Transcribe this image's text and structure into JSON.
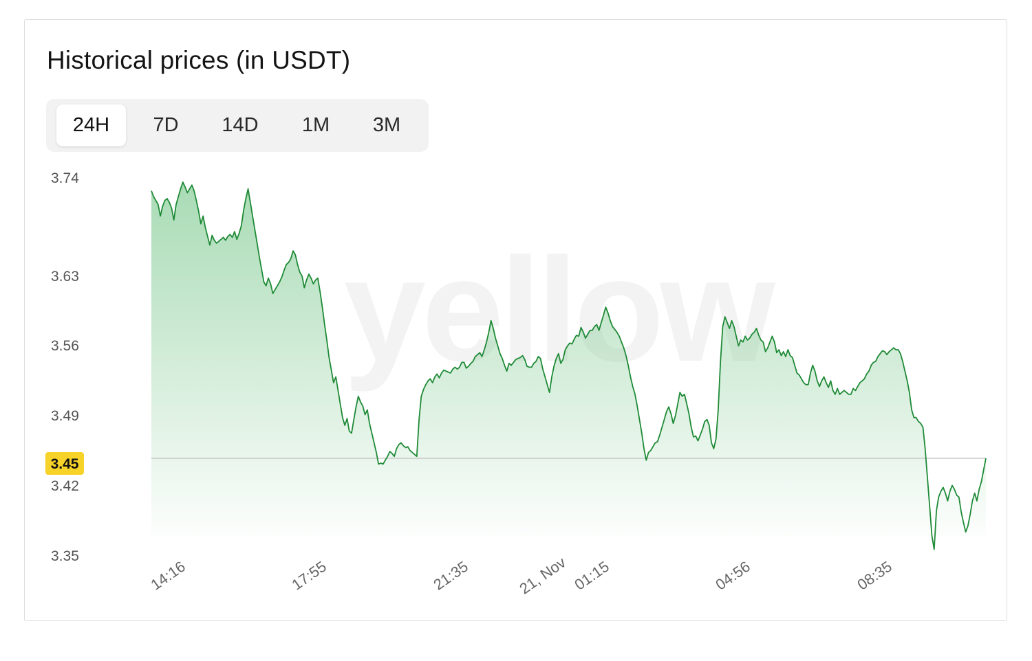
{
  "header": {
    "title": "Historical prices (in USDT)"
  },
  "tabs": [
    {
      "label": "24H",
      "active": true
    },
    {
      "label": "7D",
      "active": false
    },
    {
      "label": "14D",
      "active": false
    },
    {
      "label": "1M",
      "active": false
    },
    {
      "label": "3M",
      "active": false
    }
  ],
  "watermark": "yellow",
  "colors": {
    "line": "#1e8a36",
    "fill_top": "#8ccf9c",
    "badge": "#f7d32a",
    "reference_line": "#c8c8c8"
  },
  "chart_data": {
    "type": "area",
    "title": "Historical prices (in USDT)",
    "ylim": [
      3.35,
      3.74
    ],
    "yticks": [
      "3.74",
      "3.63",
      "3.56",
      "3.49",
      "3.42",
      "3.35"
    ],
    "xticks": [
      "14:16",
      "17:55",
      "21:35",
      "21, Nov",
      "01:15",
      "04:56",
      "08:35"
    ],
    "current_price": "3.45",
    "current_value": 3.45,
    "grid": false,
    "series": [
      {
        "values": [
          3.726,
          3.72,
          3.716,
          3.712,
          3.7,
          3.71,
          3.716,
          3.718,
          3.714,
          3.708,
          3.696,
          3.712,
          3.72,
          3.728,
          3.735,
          3.73,
          3.724,
          3.728,
          3.732,
          3.726,
          3.716,
          3.705,
          3.692,
          3.7,
          3.688,
          3.679,
          3.67,
          3.68,
          3.675,
          3.672,
          3.674,
          3.676,
          3.678,
          3.675,
          3.679,
          3.681,
          3.678,
          3.684,
          3.676,
          3.682,
          3.69,
          3.706,
          3.718,
          3.728,
          3.714,
          3.7,
          3.686,
          3.672,
          3.658,
          3.645,
          3.632,
          3.628,
          3.636,
          3.63,
          3.62,
          3.624,
          3.628,
          3.632,
          3.637,
          3.644,
          3.65,
          3.652,
          3.656,
          3.664,
          3.66,
          3.65,
          3.642,
          3.638,
          3.626,
          3.634,
          3.64,
          3.636,
          3.63,
          3.634,
          3.636,
          3.622,
          3.606,
          3.588,
          3.572,
          3.554,
          3.541,
          3.528,
          3.534,
          3.52,
          3.506,
          3.492,
          3.484,
          3.491,
          3.478,
          3.476,
          3.49,
          3.503,
          3.514,
          3.508,
          3.504,
          3.495,
          3.5,
          3.486,
          3.476,
          3.466,
          3.456,
          3.444,
          3.445,
          3.444,
          3.448,
          3.452,
          3.457,
          3.455,
          3.452,
          3.46,
          3.464,
          3.466,
          3.463,
          3.461,
          3.462,
          3.458,
          3.456,
          3.454,
          3.452,
          3.49,
          3.514,
          3.521,
          3.526,
          3.53,
          3.532,
          3.528,
          3.534,
          3.537,
          3.533,
          3.538,
          3.541,
          3.54,
          3.539,
          3.538,
          3.542,
          3.544,
          3.542,
          3.544,
          3.549,
          3.549,
          3.543,
          3.545,
          3.548,
          3.55,
          3.555,
          3.557,
          3.559,
          3.555,
          3.562,
          3.57,
          3.58,
          3.592,
          3.584,
          3.574,
          3.566,
          3.558,
          3.553,
          3.546,
          3.54,
          3.548,
          3.546,
          3.549,
          3.552,
          3.553,
          3.554,
          3.556,
          3.552,
          3.545,
          3.544,
          3.544,
          3.548,
          3.55,
          3.555,
          3.553,
          3.542,
          3.534,
          3.526,
          3.518,
          3.534,
          3.545,
          3.553,
          3.558,
          3.548,
          3.552,
          3.562,
          3.566,
          3.569,
          3.568,
          3.573,
          3.577,
          3.576,
          3.585,
          3.58,
          3.574,
          3.578,
          3.582,
          3.582,
          3.586,
          3.588,
          3.582,
          3.59,
          3.598,
          3.606,
          3.6,
          3.592,
          3.586,
          3.583,
          3.58,
          3.576,
          3.57,
          3.564,
          3.556,
          3.546,
          3.534,
          3.524,
          3.516,
          3.504,
          3.49,
          3.476,
          3.46,
          3.448,
          3.456,
          3.458,
          3.462,
          3.466,
          3.467,
          3.474,
          3.482,
          3.49,
          3.498,
          3.503,
          3.496,
          3.486,
          3.494,
          3.506,
          3.518,
          3.514,
          3.516,
          3.506,
          3.496,
          3.482,
          3.472,
          3.473,
          3.468,
          3.474,
          3.48,
          3.488,
          3.49,
          3.484,
          3.466,
          3.46,
          3.47,
          3.5,
          3.55,
          3.586,
          3.596,
          3.59,
          3.584,
          3.592,
          3.586,
          3.576,
          3.566,
          3.572,
          3.57,
          3.576,
          3.572,
          3.574,
          3.578,
          3.58,
          3.584,
          3.577,
          3.572,
          3.57,
          3.56,
          3.564,
          3.57,
          3.576,
          3.57,
          3.559,
          3.562,
          3.556,
          3.56,
          3.555,
          3.562,
          3.556,
          3.554,
          3.546,
          3.538,
          3.536,
          3.532,
          3.528,
          3.526,
          3.526,
          3.538,
          3.546,
          3.54,
          3.53,
          3.524,
          3.53,
          3.534,
          3.528,
          3.523,
          3.53,
          3.52,
          3.516,
          3.522,
          3.516,
          3.518,
          3.52,
          3.518,
          3.516,
          3.516,
          3.522,
          3.52,
          3.524,
          3.528,
          3.53,
          3.532,
          3.537,
          3.54,
          3.546,
          3.549,
          3.55,
          3.555,
          3.558,
          3.561,
          3.56,
          3.557,
          3.56,
          3.562,
          3.564,
          3.562,
          3.562,
          3.558,
          3.55,
          3.54,
          3.53,
          3.518,
          3.5,
          3.492,
          3.492,
          3.488,
          3.486,
          3.482,
          3.46,
          3.43,
          3.4,
          3.37,
          3.356,
          3.396,
          3.41,
          3.416,
          3.42,
          3.414,
          3.406,
          3.416,
          3.422,
          3.418,
          3.412,
          3.41,
          3.395,
          3.384,
          3.374,
          3.38,
          3.392,
          3.406,
          3.414,
          3.406,
          3.418,
          3.426,
          3.438,
          3.45
        ]
      }
    ]
  }
}
